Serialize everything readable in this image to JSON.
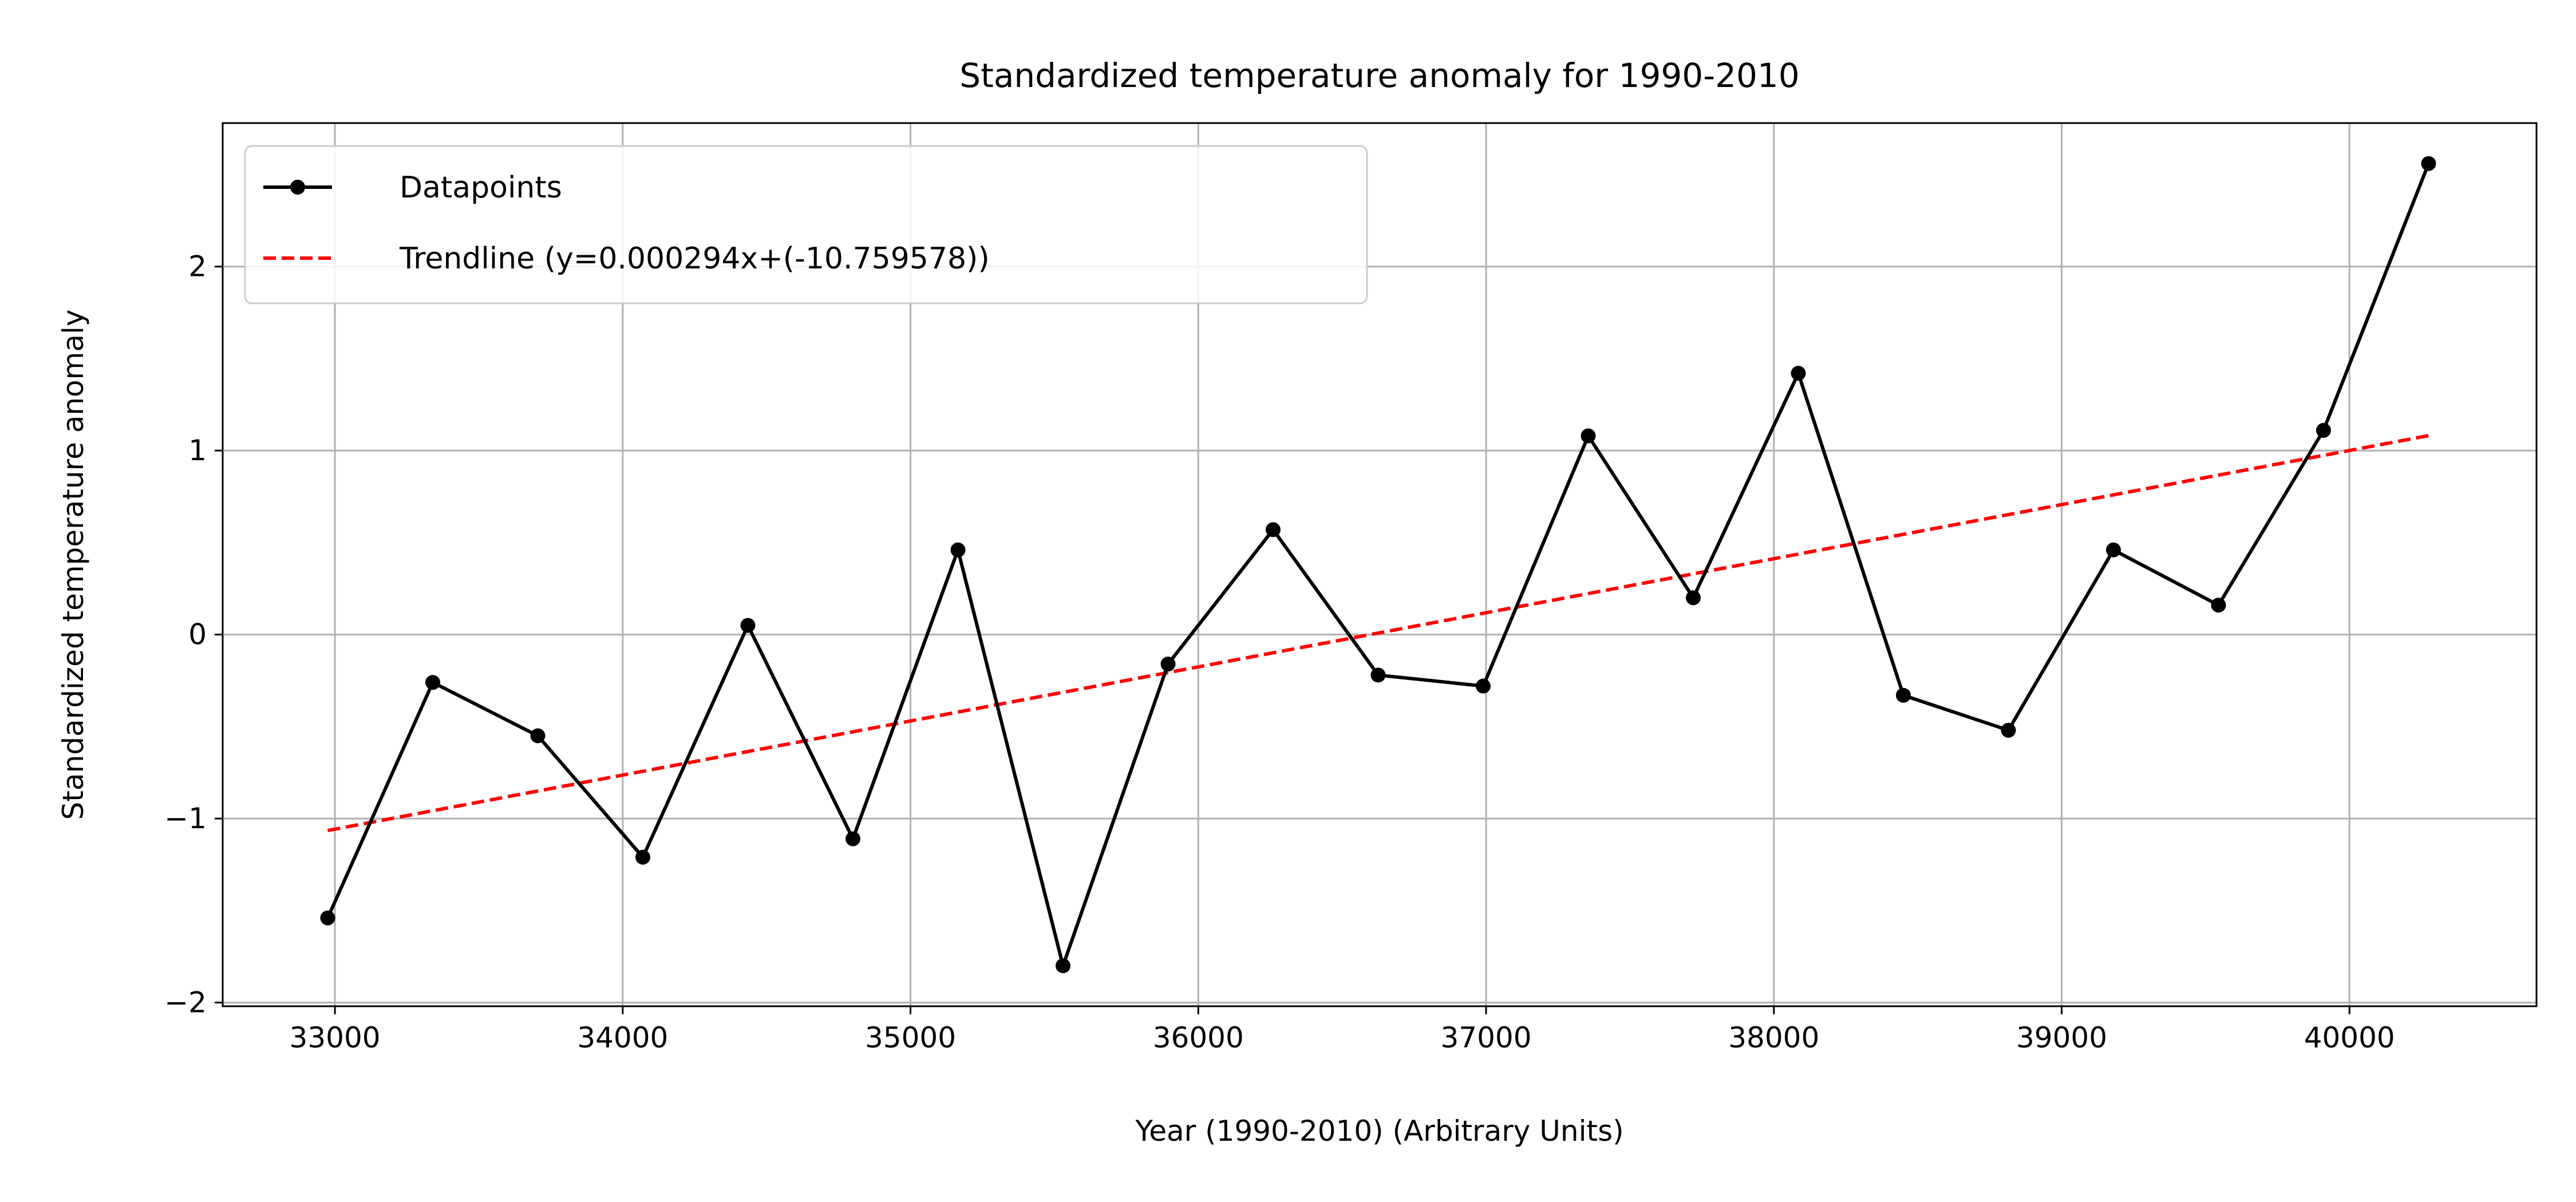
{
  "chart_data": {
    "type": "line",
    "title": "Standardized temperature anomaly for 1990-2010",
    "xlabel": "Year (1990-2010) (Arbitrary Units)",
    "ylabel": "Standardized temperature anomaly",
    "xlim": [
      32610,
      40650
    ],
    "ylim": [
      -2.02,
      2.78
    ],
    "xticks": [
      33000,
      34000,
      35000,
      36000,
      37000,
      38000,
      39000,
      40000
    ],
    "xtick_labels": [
      "33000",
      "34000",
      "35000",
      "36000",
      "37000",
      "38000",
      "39000",
      "40000"
    ],
    "yticks": [
      -2,
      -1,
      0,
      1,
      2
    ],
    "ytick_labels": [
      "−2",
      "−1",
      "0",
      "1",
      "2"
    ],
    "grid": true,
    "legend_position": "top-left",
    "series": [
      {
        "name": "Datapoints",
        "style": "solid-with-markers",
        "color": "#000000",
        "x": [
          32975,
          33340,
          33705,
          34070,
          34435,
          34800,
          35165,
          35530,
          35895,
          36260,
          36625,
          36990,
          37355,
          37720,
          38085,
          38450,
          38815,
          39180,
          39545,
          39910,
          40275
        ],
        "y": [
          -1.54,
          -0.26,
          -0.55,
          -1.21,
          0.05,
          -1.11,
          0.46,
          -1.8,
          -0.16,
          0.57,
          -0.22,
          -0.28,
          1.08,
          0.2,
          1.42,
          -0.33,
          -0.52,
          0.46,
          0.16,
          1.11,
          2.56
        ]
      },
      {
        "name": "Trendline (y=0.000294x+(-10.759578))",
        "style": "dashed",
        "color": "#ff0000",
        "slope": 0.000294,
        "intercept": -10.759578,
        "x": [
          32975,
          40275
        ]
      }
    ]
  }
}
